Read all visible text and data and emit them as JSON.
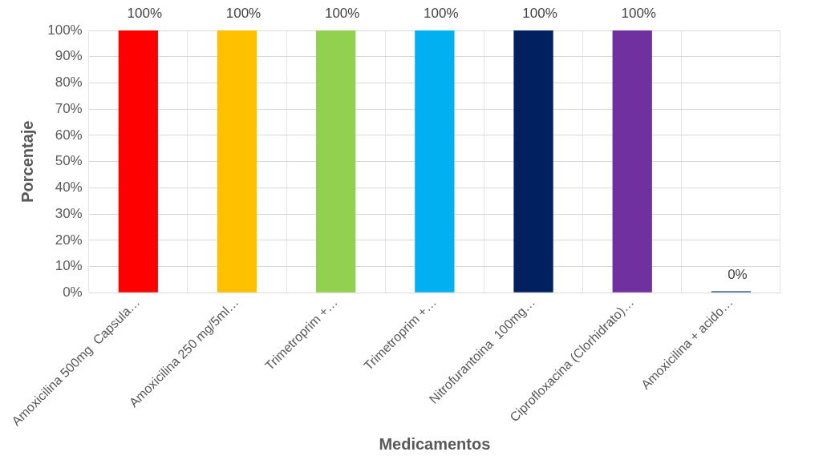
{
  "chart_data": {
    "type": "bar",
    "xlabel": "Medicamentos",
    "ylabel": "Porcentaje",
    "categories": [
      "Amoxicilina 500mg  Capsula…",
      "Amoxicilina 250 mg/5ml…",
      "Trimetroprim +…",
      "Trimetroprim +…",
      "Nitrofurantoina  100mg…",
      "Ciprofloxacina (Clorhidrato)…",
      "Amoxicilina + acido…"
    ],
    "values": [
      100,
      100,
      100,
      100,
      100,
      100,
      0
    ],
    "colors": [
      "#ff0000",
      "#ffc000",
      "#92d050",
      "#00b0f0",
      "#002060",
      "#7030a0",
      "#3c5f8e"
    ],
    "value_labels": [
      "100%",
      "100%",
      "100%",
      "100%",
      "100%",
      "100%",
      "0%"
    ],
    "ylim": [
      0,
      100
    ],
    "yticks": [
      {
        "value": 0,
        "label": "0%"
      },
      {
        "value": 10,
        "label": "10%"
      },
      {
        "value": 20,
        "label": "20%"
      },
      {
        "value": 30,
        "label": "30%"
      },
      {
        "value": 40,
        "label": "40%"
      },
      {
        "value": 50,
        "label": "50%"
      },
      {
        "value": 60,
        "label": "60%"
      },
      {
        "value": 70,
        "label": "70%"
      },
      {
        "value": 80,
        "label": "80%"
      },
      {
        "value": 90,
        "label": "90%"
      },
      {
        "value": 100,
        "label": "100%"
      }
    ],
    "grid": true,
    "legend": false
  }
}
